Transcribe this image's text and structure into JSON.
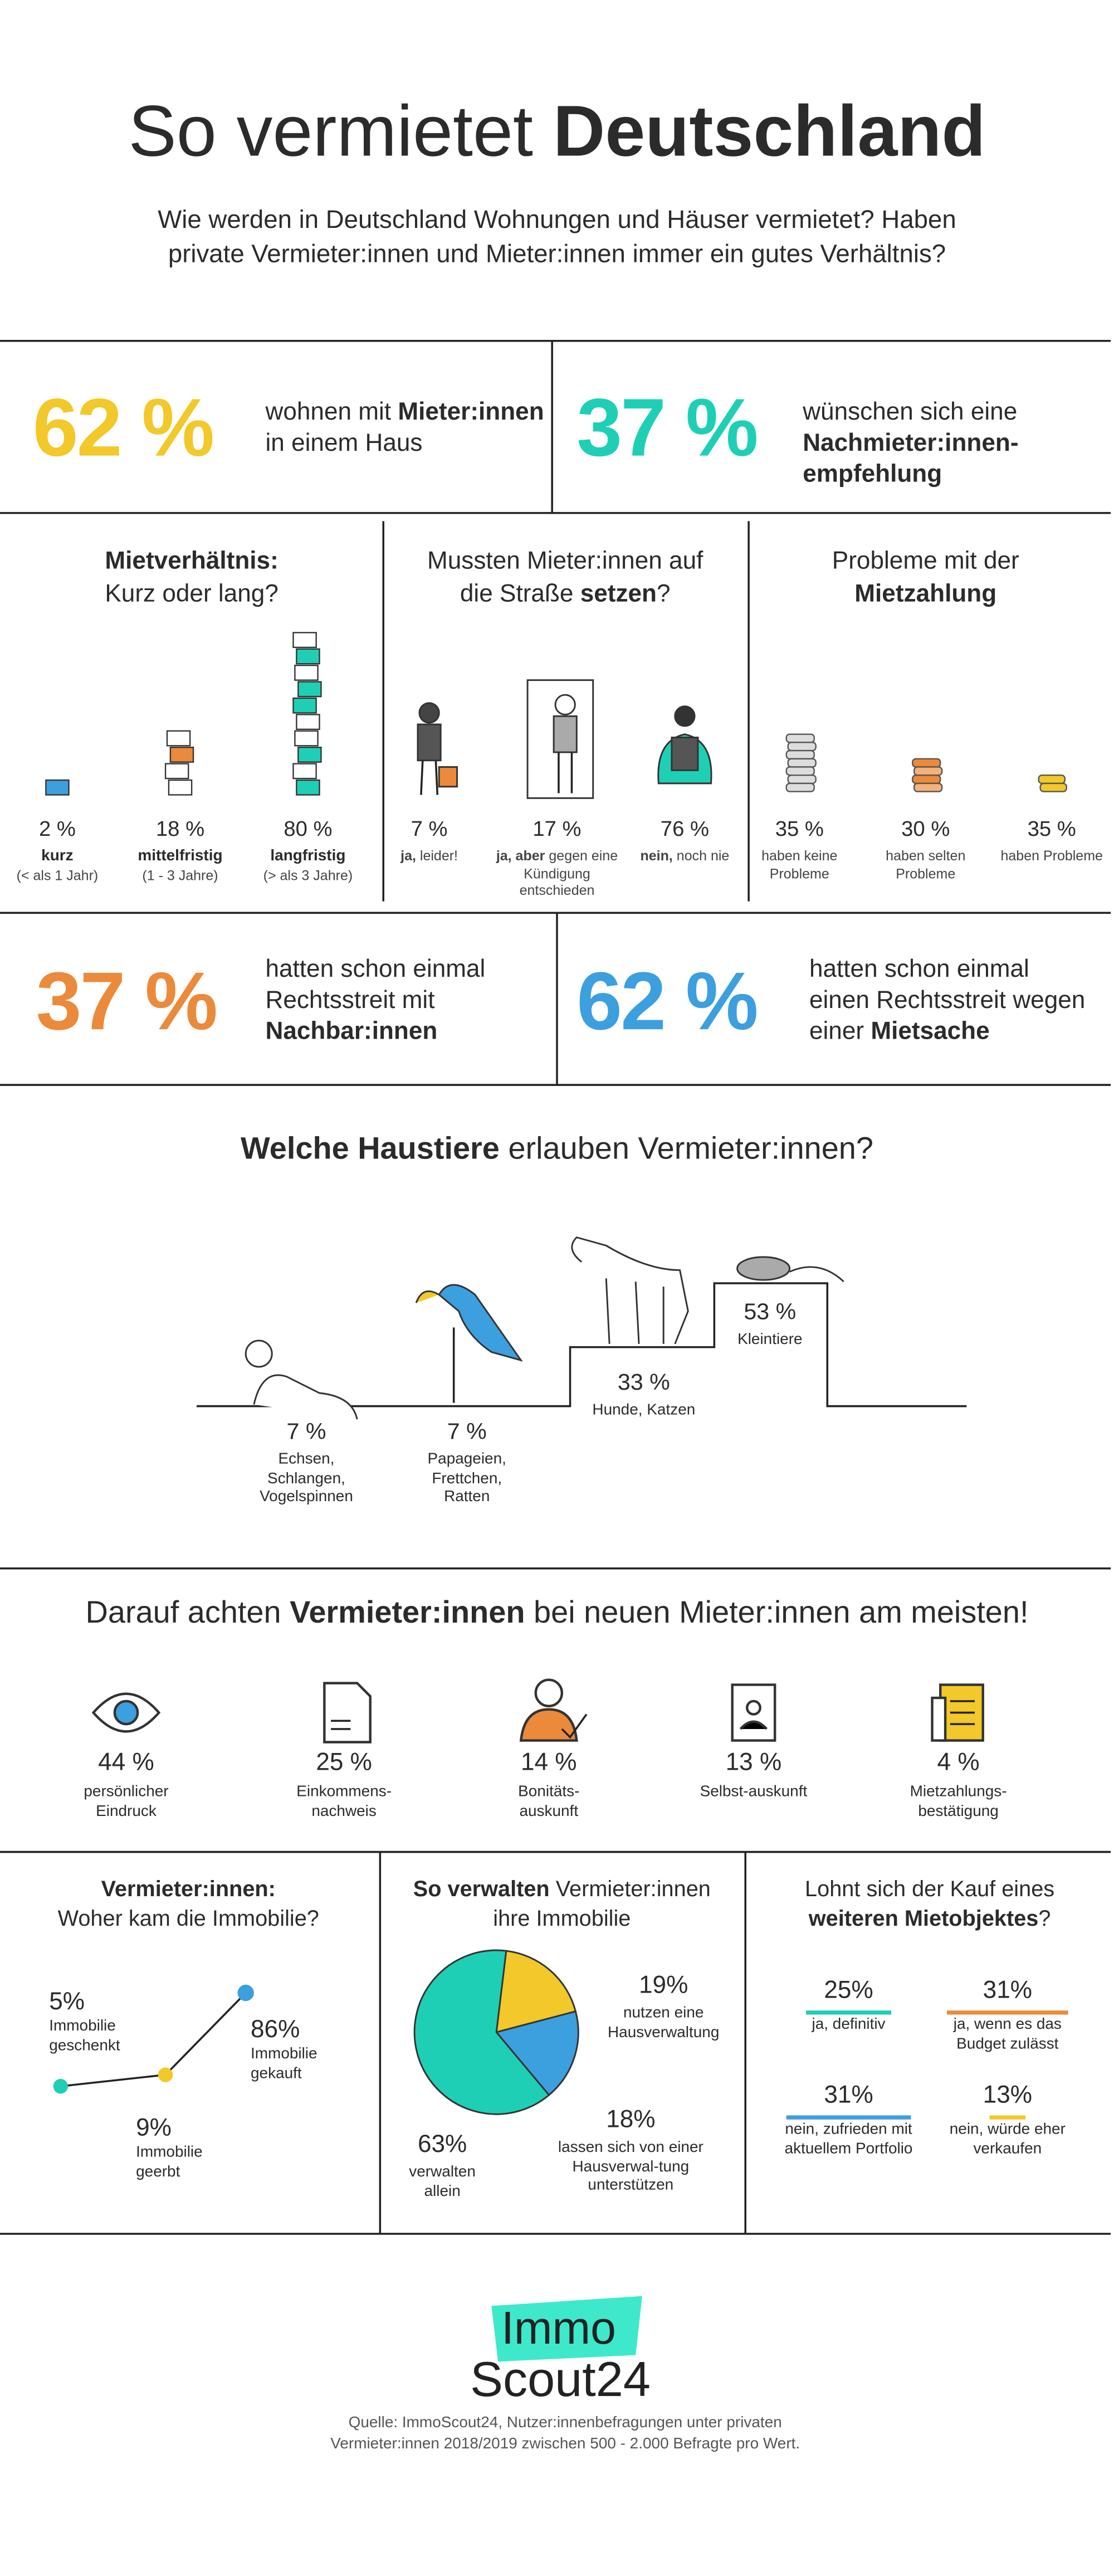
{
  "header": {
    "title_light": "So vermietet",
    "title_bold": "Deutschland",
    "subtitle": "Wie werden in Deutschland Wohnungen und Häuser vermietet? Haben private Vermieter:innen und Mieter:innen immer ein gutes Verhältnis?"
  },
  "top_stats": [
    {
      "value": "62 %",
      "text": "wohnen mit",
      "bold": "Mieter:innen",
      "text_end": "in einem Haus"
    },
    {
      "value": "37 %",
      "text": "wünschen sich eine",
      "bold": "Nachmieter:innen-empfehlung"
    }
  ],
  "rental_duration": {
    "title_bold": "Mietverhältnis:",
    "title": "Kurz oder lang?",
    "items": [
      {
        "value": "2 %",
        "label": "kurz",
        "note": "(< als 1 Jahr)"
      },
      {
        "value": "18 %",
        "label": "mittelfristig",
        "note": "(1 - 3 Jahre)"
      },
      {
        "value": "80 %",
        "label": "langfristig",
        "note": "(> als 3 Jahre)"
      }
    ]
  },
  "evictions": {
    "title": "Mussten Mieter:innen auf die Straße",
    "title_bold": "setzen",
    "title_end": "?",
    "items": [
      {
        "value": "7 %",
        "label_bold": "ja,",
        "label": "leider!"
      },
      {
        "value": "17 %",
        "label_bold": "ja, aber",
        "label": "gegen eine Kündigung entschieden"
      },
      {
        "value": "76 %",
        "label_bold": "nein,",
        "label": "noch nie"
      }
    ]
  },
  "rent_payment": {
    "title": "Probleme mit der",
    "title_bold": "Mietzahlung",
    "items": [
      {
        "value": "35 %",
        "label": "haben keine Probleme"
      },
      {
        "value": "30 %",
        "label": "haben selten Probleme"
      },
      {
        "value": "35 %",
        "label": "haben Probleme"
      }
    ]
  },
  "disputes": [
    {
      "value": "37 %",
      "text": "hatten schon einmal Rechtsstreit mit",
      "bold": "Nachbar:innen"
    },
    {
      "value": "62 %",
      "text": "hatten schon einmal einen Rechtsstreit wegen einer",
      "bold": "Mietsache"
    }
  ],
  "pets": {
    "title_bold": "Welche Haustiere",
    "title": "erlauben Vermieter:innen?",
    "items": [
      {
        "value": "7 %",
        "label": "Echsen, Schlangen, Vogelspinnen"
      },
      {
        "value": "7 %",
        "label": "Papageien, Frettchen, Ratten"
      },
      {
        "value": "33 %",
        "label": "Hunde, Katzen"
      },
      {
        "value": "53 %",
        "label": "Kleintiere"
      }
    ]
  },
  "criteria": {
    "title": "Darauf achten",
    "title_bold": "Vermieter:innen",
    "title_end": "bei neuen Mieter:innen am meisten!",
    "items": [
      {
        "value": "44 %",
        "label": "persönlicher Eindruck"
      },
      {
        "value": "25 %",
        "label": "Einkommens-nachweis"
      },
      {
        "value": "14 %",
        "label": "Bonitäts-auskunft"
      },
      {
        "value": "13 %",
        "label": "Selbst-auskunft"
      },
      {
        "value": "4 %",
        "label": "Mietzahlungs-bestätigung"
      }
    ]
  },
  "property_origin": {
    "title_bold": "Vermieter:innen:",
    "title": "Woher kam die Immobilie?",
    "items": [
      {
        "value": "5%",
        "label": "Immobilie geschenkt"
      },
      {
        "value": "86%",
        "label": "Immobilie gekauft"
      },
      {
        "value": "9%",
        "label": "Immobilie geerbt"
      }
    ]
  },
  "management": {
    "title_bold": "So verwalten",
    "title": "Vermieter:innen ihre Immobilie",
    "values": [
      19,
      18,
      63
    ],
    "value_labels": [
      "19%",
      "18%",
      "63%"
    ],
    "labels": [
      "nutzen eine Hausverwaltung",
      "lassen sich von einer Hausverwal-tung unterstützen",
      "verwalten allein"
    ],
    "colors": [
      "#f2c82a",
      "#3c9fde",
      "#1fcfb5"
    ]
  },
  "further_purchase": {
    "title": "Lohnt sich der Kauf eines",
    "title_bold": "weiteren Mietobjektes",
    "title_end": "?",
    "items": [
      {
        "value": "25%",
        "label": "ja, definitiv"
      },
      {
        "value": "31%",
        "label": "ja, wenn es das Budget zulässt"
      },
      {
        "value": "31%",
        "label": "nein, zufrieden mit aktuellem Portfolio"
      },
      {
        "value": "13%",
        "label": "nein, würde eher verkaufen"
      }
    ]
  },
  "footer": {
    "logo_top": "Immo",
    "logo_bottom": "Scout24",
    "source": "Quelle: ImmoScout24, Nutzer:innenbefragungen unter privaten Vermieter:innen 2018/2019 zwischen 500 - 2.000 Befragte pro Wert."
  }
}
